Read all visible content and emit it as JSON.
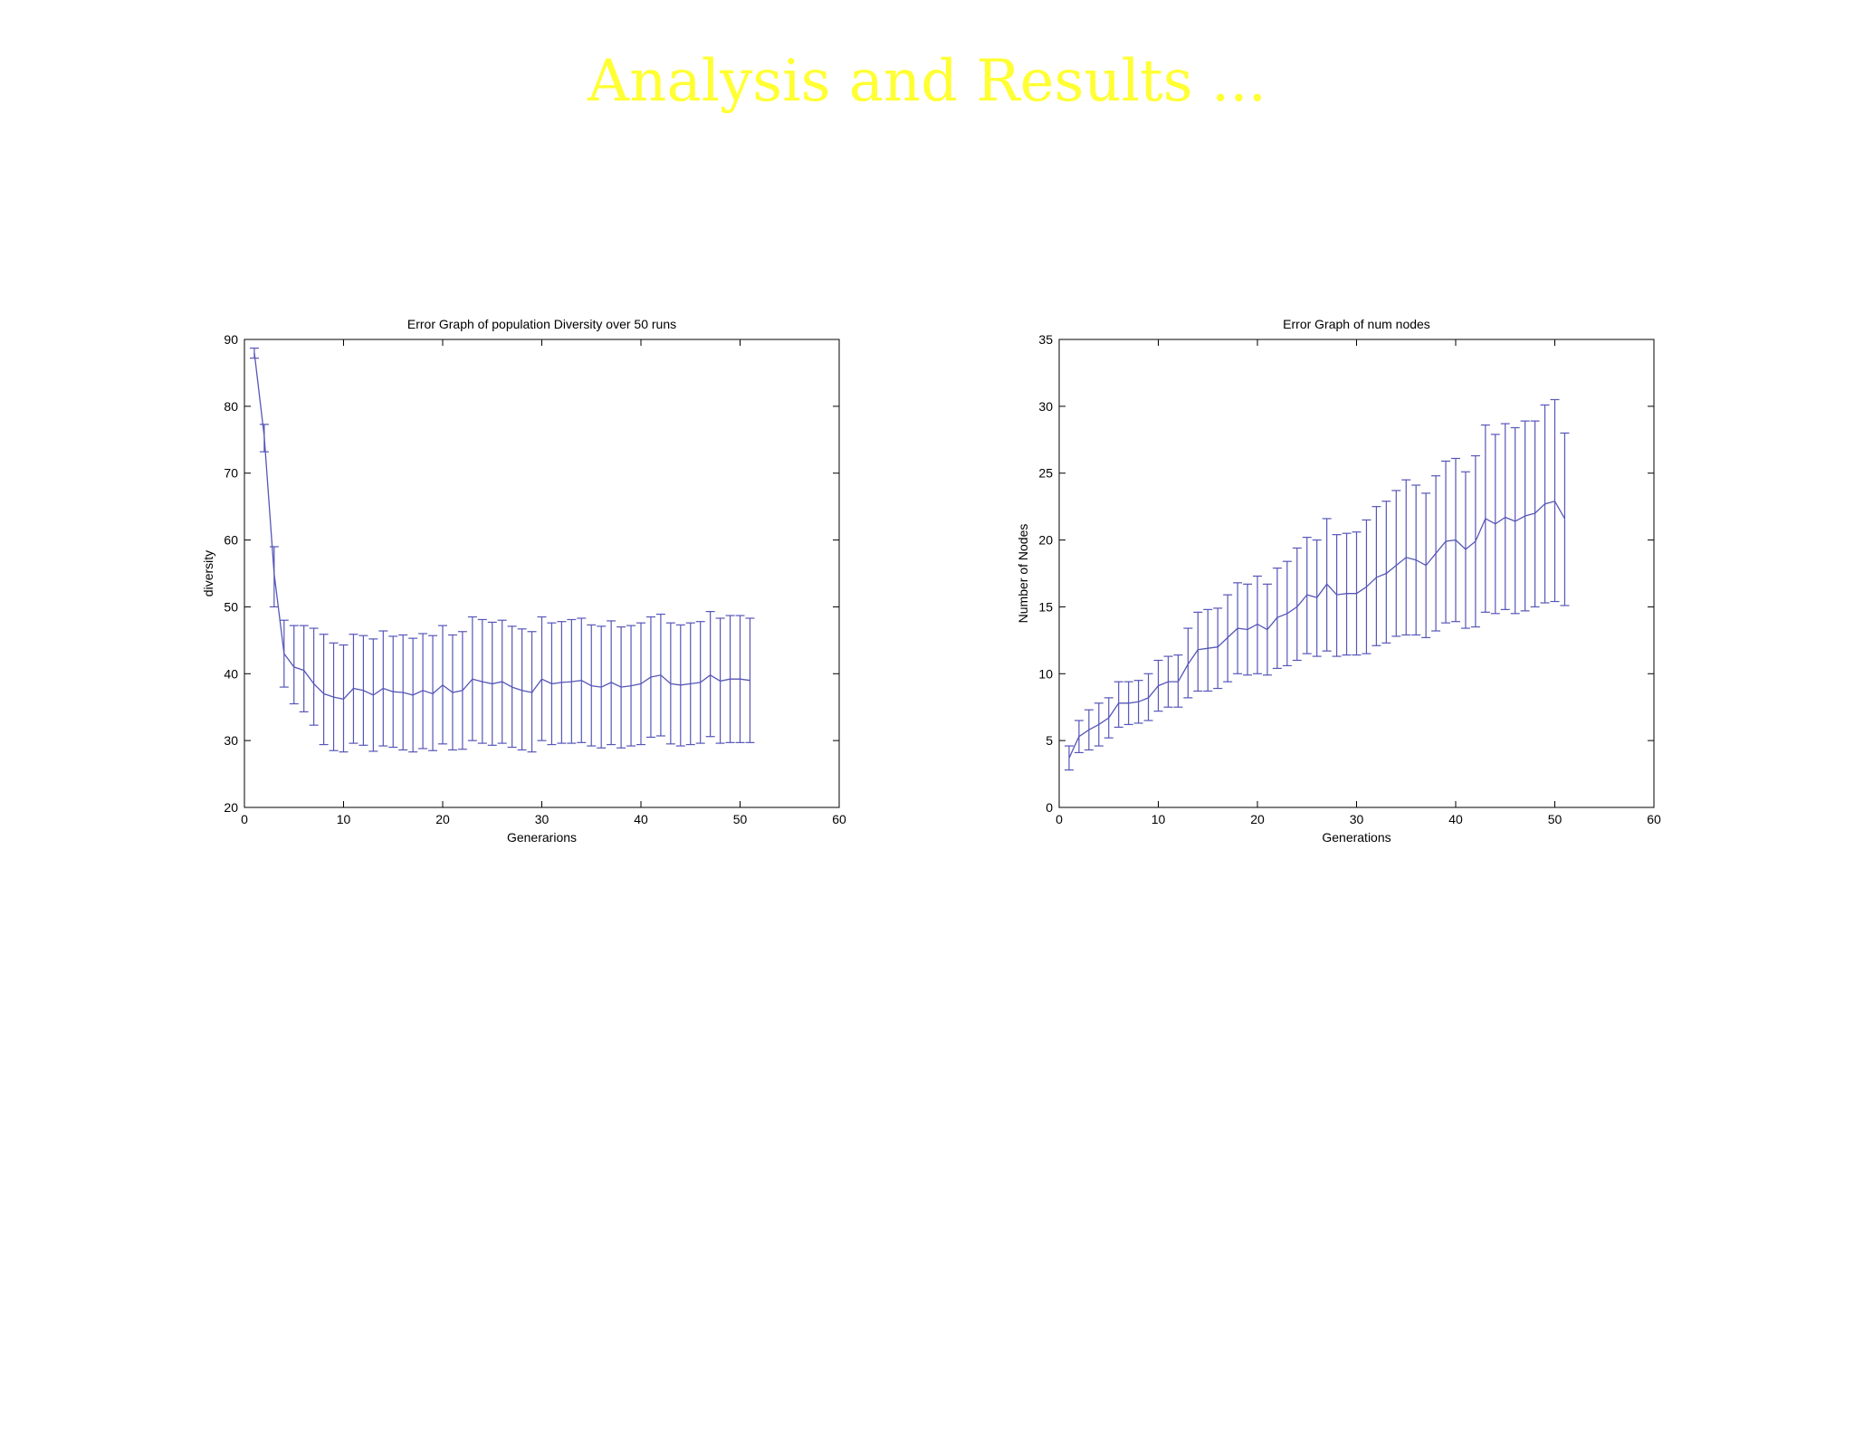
{
  "slide": {
    "title": "Analysis and Results ..."
  },
  "colors": {
    "series": "#5656b8",
    "axis": "#000000",
    "title": "#ffff33"
  },
  "chart_data": [
    {
      "type": "line",
      "title": "Error Graph of population Diversity over 50 runs",
      "xlabel": "Generarions",
      "ylabel": "diversity",
      "xlim": [
        0,
        60
      ],
      "ylim": [
        20,
        90
      ],
      "xticks": [
        0,
        10,
        20,
        30,
        40,
        50,
        60
      ],
      "yticks": [
        20,
        30,
        40,
        50,
        60,
        70,
        80,
        90
      ],
      "grid": false,
      "error_bars": true,
      "x": [
        1,
        2,
        3,
        4,
        5,
        6,
        7,
        8,
        9,
        10,
        11,
        12,
        13,
        14,
        15,
        16,
        17,
        18,
        19,
        20,
        21,
        22,
        23,
        24,
        25,
        26,
        27,
        28,
        29,
        30,
        31,
        32,
        33,
        34,
        35,
        36,
        37,
        38,
        39,
        40,
        41,
        42,
        43,
        44,
        45,
        46,
        47,
        48,
        49,
        50,
        51
      ],
      "y": [
        88,
        75.5,
        55,
        43,
        41,
        40.5,
        38.5,
        37,
        36.5,
        36.2,
        37.8,
        37.5,
        36.8,
        37.8,
        37.3,
        37.2,
        36.8,
        37.5,
        37,
        38.3,
        37.2,
        37.5,
        39.2,
        38.8,
        38.5,
        38.8,
        38,
        37.5,
        37.2,
        39.2,
        38.5,
        38.7,
        38.8,
        39,
        38.2,
        38,
        38.7,
        38,
        38.2,
        38.5,
        39.5,
        39.8,
        38.5,
        38.3,
        38.5,
        38.7,
        39.8,
        38.9,
        39.2,
        39.2,
        39
      ],
      "err_high": [
        88.7,
        77.3,
        59,
        48,
        47.2,
        47.2,
        46.8,
        45.9,
        44.6,
        44.3,
        45.9,
        45.7,
        45.2,
        46.4,
        45.6,
        45.8,
        45.3,
        46,
        45.7,
        47.2,
        45.8,
        46.3,
        48.5,
        48.1,
        47.7,
        48,
        47.1,
        46.7,
        46.3,
        48.5,
        47.6,
        47.8,
        48.1,
        48.3,
        47.3,
        47.1,
        47.9,
        47,
        47.2,
        47.6,
        48.5,
        48.9,
        47.6,
        47.3,
        47.6,
        47.8,
        49.3,
        48.3,
        48.7,
        48.7,
        48.3
      ],
      "err_low": [
        87.2,
        73.2,
        50,
        38,
        35.5,
        34.3,
        32.3,
        29.4,
        28.5,
        28.3,
        29.6,
        29.3,
        28.4,
        29.2,
        29,
        28.6,
        28.3,
        28.8,
        28.5,
        29.5,
        28.6,
        28.7,
        30,
        29.6,
        29.3,
        29.6,
        29,
        28.6,
        28.3,
        30,
        29.4,
        29.6,
        29.6,
        29.7,
        29.2,
        28.9,
        29.4,
        28.9,
        29.2,
        29.4,
        30.5,
        30.7,
        29.5,
        29.2,
        29.4,
        29.6,
        30.6,
        29.6,
        29.7,
        29.7,
        29.7
      ]
    },
    {
      "type": "line",
      "title": "Error Graph of num nodes",
      "xlabel": "Generations",
      "ylabel": "Number of Nodes",
      "xlim": [
        0,
        60
      ],
      "ylim": [
        0,
        35
      ],
      "xticks": [
        0,
        10,
        20,
        30,
        40,
        50,
        60
      ],
      "yticks": [
        0,
        5,
        10,
        15,
        20,
        25,
        30,
        35
      ],
      "grid": false,
      "error_bars": true,
      "x": [
        1,
        2,
        3,
        4,
        5,
        6,
        7,
        8,
        9,
        10,
        11,
        12,
        13,
        14,
        15,
        16,
        17,
        18,
        19,
        20,
        21,
        22,
        23,
        24,
        25,
        26,
        27,
        28,
        29,
        30,
        31,
        32,
        33,
        34,
        35,
        36,
        37,
        38,
        39,
        40,
        41,
        42,
        43,
        44,
        45,
        46,
        47,
        48,
        49,
        50,
        51
      ],
      "y": [
        3.7,
        5.3,
        5.8,
        6.2,
        6.7,
        7.8,
        7.8,
        7.9,
        8.2,
        9.1,
        9.4,
        9.4,
        10.7,
        11.8,
        11.9,
        12,
        12.7,
        13.4,
        13.3,
        13.7,
        13.3,
        14.2,
        14.5,
        15,
        15.9,
        15.7,
        16.7,
        15.9,
        16,
        16,
        16.5,
        17.2,
        17.5,
        18.1,
        18.7,
        18.5,
        18.1,
        19,
        19.9,
        20,
        19.3,
        19.9,
        21.6,
        21.2,
        21.7,
        21.4,
        21.8,
        22,
        22.7,
        22.9,
        21.6
      ],
      "err_high": [
        4.6,
        6.5,
        7.3,
        7.8,
        8.2,
        9.4,
        9.4,
        9.5,
        10,
        11,
        11.3,
        11.4,
        13.4,
        14.6,
        14.8,
        14.9,
        15.9,
        16.8,
        16.7,
        17.3,
        16.7,
        17.9,
        18.4,
        19.4,
        20.2,
        20,
        21.6,
        20.4,
        20.5,
        20.6,
        21.5,
        22.5,
        22.9,
        23.7,
        24.5,
        24.1,
        23.5,
        24.8,
        25.9,
        26.1,
        25.1,
        26.3,
        28.6,
        27.9,
        28.7,
        28.4,
        28.9,
        28.9,
        30.1,
        30.5,
        28
      ],
      "err_low": [
        2.8,
        4.1,
        4.3,
        4.6,
        5.2,
        6,
        6.2,
        6.3,
        6.5,
        7.2,
        7.5,
        7.5,
        8.2,
        8.7,
        8.7,
        8.9,
        9.4,
        10,
        9.9,
        10,
        9.9,
        10.4,
        10.6,
        11,
        11.5,
        11.3,
        11.7,
        11.3,
        11.4,
        11.4,
        11.5,
        12.1,
        12.3,
        12.8,
        12.9,
        12.9,
        12.7,
        13.2,
        13.8,
        13.9,
        13.4,
        13.5,
        14.6,
        14.5,
        14.8,
        14.5,
        14.7,
        15,
        15.3,
        15.4,
        15.1
      ]
    }
  ]
}
